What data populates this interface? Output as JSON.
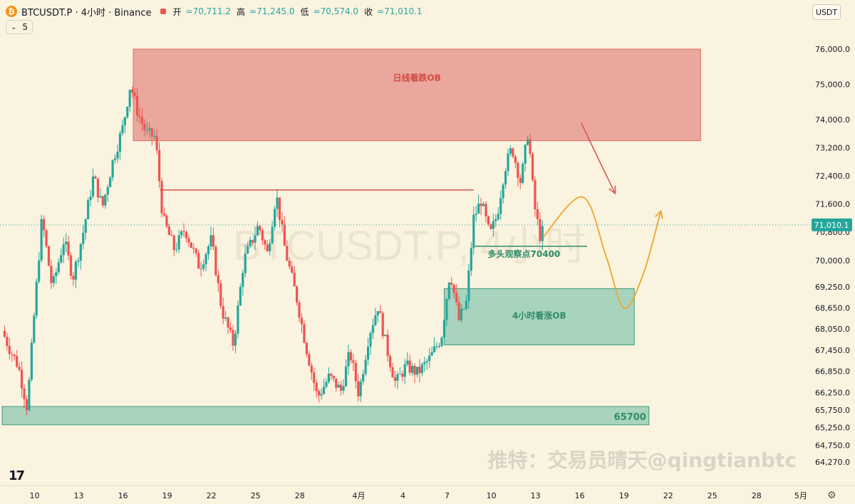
{
  "header": {
    "logo_glyph": "₿",
    "title": "BTCUSDT.P · 4小时 · Binance",
    "open_label": "开",
    "open_value": "=70,711.2",
    "high_label": "高",
    "high_value": "=71,245.0",
    "low_label": "低",
    "low_value": "=70,574.0",
    "close_label": "收",
    "close_value": "=71,010.1"
  },
  "indicator": {
    "value": "5",
    "icon": "chevron-down-icon"
  },
  "currency": "USDT",
  "watermark": "BTCUSDT.P, 4小时",
  "signature": "推特：交易员晴天@qingtianbtc",
  "colors": {
    "background": "#faf3e0",
    "up": "#26a69a",
    "down": "#ef5350",
    "bearish_zone": "#eaa79d",
    "bullish_zone": "#a8d3bd",
    "projection": "#f0a52a",
    "price_badge": "#26a69a"
  },
  "chart_data": {
    "type": "candlestick",
    "symbol": "BTCUSDT.P",
    "interval": "4小时",
    "exchange": "Binance",
    "ylim": [
      64000,
      76500
    ],
    "y_ticks": [
      {
        "value": 76000,
        "label": "76,000.0"
      },
      {
        "value": 75000,
        "label": "75,000.0"
      },
      {
        "value": 74000,
        "label": "74,000.0"
      },
      {
        "value": 73200,
        "label": "73,200.0"
      },
      {
        "value": 72400,
        "label": "72,400.0"
      },
      {
        "value": 71600,
        "label": "71,600.0"
      },
      {
        "value": 70800,
        "label": "70,800.0"
      },
      {
        "value": 70000,
        "label": "70,000.0"
      },
      {
        "value": 69250,
        "label": "69,250.0"
      },
      {
        "value": 68650,
        "label": "68,650.0"
      },
      {
        "value": 68050,
        "label": "68,050.0"
      },
      {
        "value": 67450,
        "label": "67,450.0"
      },
      {
        "value": 66850,
        "label": "66,850.0"
      },
      {
        "value": 66250,
        "label": "66,250.0"
      },
      {
        "value": 65750,
        "label": "65,750.0"
      },
      {
        "value": 65250,
        "label": "65,250.0"
      },
      {
        "value": 64750,
        "label": "64,750.0"
      },
      {
        "value": 64270,
        "label": "64,270.0"
      }
    ],
    "x_ticks": [
      {
        "label": "10",
        "day": 10
      },
      {
        "label": "13",
        "day": 13
      },
      {
        "label": "16",
        "day": 16
      },
      {
        "label": "19",
        "day": 19
      },
      {
        "label": "22",
        "day": 22
      },
      {
        "label": "25",
        "day": 25
      },
      {
        "label": "28",
        "day": 28
      },
      {
        "label": "4月",
        "day": 32
      },
      {
        "label": "4",
        "day": 35
      },
      {
        "label": "7",
        "day": 38
      },
      {
        "label": "10",
        "day": 41
      },
      {
        "label": "13",
        "day": 44
      },
      {
        "label": "16",
        "day": 47
      },
      {
        "label": "19",
        "day": 50
      },
      {
        "label": "22",
        "day": 53
      },
      {
        "label": "25",
        "day": 56
      },
      {
        "label": "28",
        "day": 59
      },
      {
        "label": "5月",
        "day": 62
      }
    ],
    "x_range_days": [
      7.8,
      62.2
    ],
    "last_price": {
      "value": 71010.1,
      "label": "71,010.1"
    },
    "path_points": [
      [
        7.8,
        68000
      ],
      [
        8.3,
        67500
      ],
      [
        8.9,
        67000
      ],
      [
        9.5,
        65800
      ],
      [
        10.0,
        68600
      ],
      [
        10.5,
        71200
      ],
      [
        11.2,
        69200
      ],
      [
        12.0,
        70600
      ],
      [
        12.6,
        69500
      ],
      [
        13.3,
        70800
      ],
      [
        14.0,
        72400
      ],
      [
        14.6,
        71500
      ],
      [
        15.3,
        72800
      ],
      [
        16.0,
        73800
      ],
      [
        16.5,
        75000
      ],
      [
        17.0,
        74200
      ],
      [
        17.6,
        73600
      ],
      [
        18.2,
        73500
      ],
      [
        18.7,
        71200
      ],
      [
        19.5,
        70300
      ],
      [
        20.2,
        70900
      ],
      [
        21.2,
        69800
      ],
      [
        22.0,
        70600
      ],
      [
        22.7,
        68600
      ],
      [
        23.5,
        67600
      ],
      [
        24.2,
        70000
      ],
      [
        25.2,
        71000
      ],
      [
        25.8,
        70200
      ],
      [
        26.4,
        71900
      ],
      [
        27.0,
        70300
      ],
      [
        27.8,
        68900
      ],
      [
        28.4,
        67600
      ],
      [
        29.2,
        66100
      ],
      [
        30.0,
        66700
      ],
      [
        30.8,
        66300
      ],
      [
        31.4,
        67400
      ],
      [
        32.0,
        66200
      ],
      [
        32.7,
        67900
      ],
      [
        33.3,
        68700
      ],
      [
        33.9,
        67500
      ],
      [
        34.5,
        66500
      ],
      [
        35.2,
        67000
      ],
      [
        36.0,
        66800
      ],
      [
        36.8,
        67200
      ],
      [
        37.6,
        67800
      ],
      [
        38.2,
        69700
      ],
      [
        38.8,
        68300
      ],
      [
        39.3,
        68800
      ],
      [
        39.8,
        71200
      ],
      [
        40.3,
        71700
      ],
      [
        40.9,
        70700
      ],
      [
        41.4,
        71300
      ],
      [
        41.9,
        72600
      ],
      [
        42.4,
        73200
      ],
      [
        43.0,
        72200
      ],
      [
        43.5,
        73700
      ],
      [
        43.9,
        71600
      ],
      [
        44.3,
        70700
      ],
      [
        44.6,
        70900
      ]
    ],
    "annotations": {
      "bearish_ob": {
        "label": "日线看跌OB",
        "x_start": 16.7,
        "x_end": 55.2,
        "y_low": 73400,
        "y_high": 76000
      },
      "bullish_ob": {
        "label": "4小时看涨OB",
        "x_start": 37.8,
        "x_end": 50.7,
        "y_low": 67600,
        "y_high": 69200
      },
      "support_zone": {
        "label": "65700",
        "x_start": 7.8,
        "x_end": 51.7,
        "y_low": 65330,
        "y_high": 65850
      },
      "resistance_line": {
        "x_start": 18.5,
        "x_end": 39.8,
        "y": 72000
      },
      "bull_watch": {
        "label": "多头观察点70400",
        "x_start": 39.9,
        "x_end": 47.5,
        "y": 70400
      },
      "down_arrow": {
        "x_start": 47.1,
        "y_start": 73900,
        "x_end": 49.4,
        "y_end": 71900
      },
      "projection": {
        "points": [
          [
            44.5,
            70650
          ],
          [
            47.2,
            71800
          ],
          [
            48.8,
            70100
          ],
          [
            50.0,
            68650
          ],
          [
            51.3,
            69600
          ],
          [
            52.5,
            71400
          ]
        ]
      }
    }
  }
}
